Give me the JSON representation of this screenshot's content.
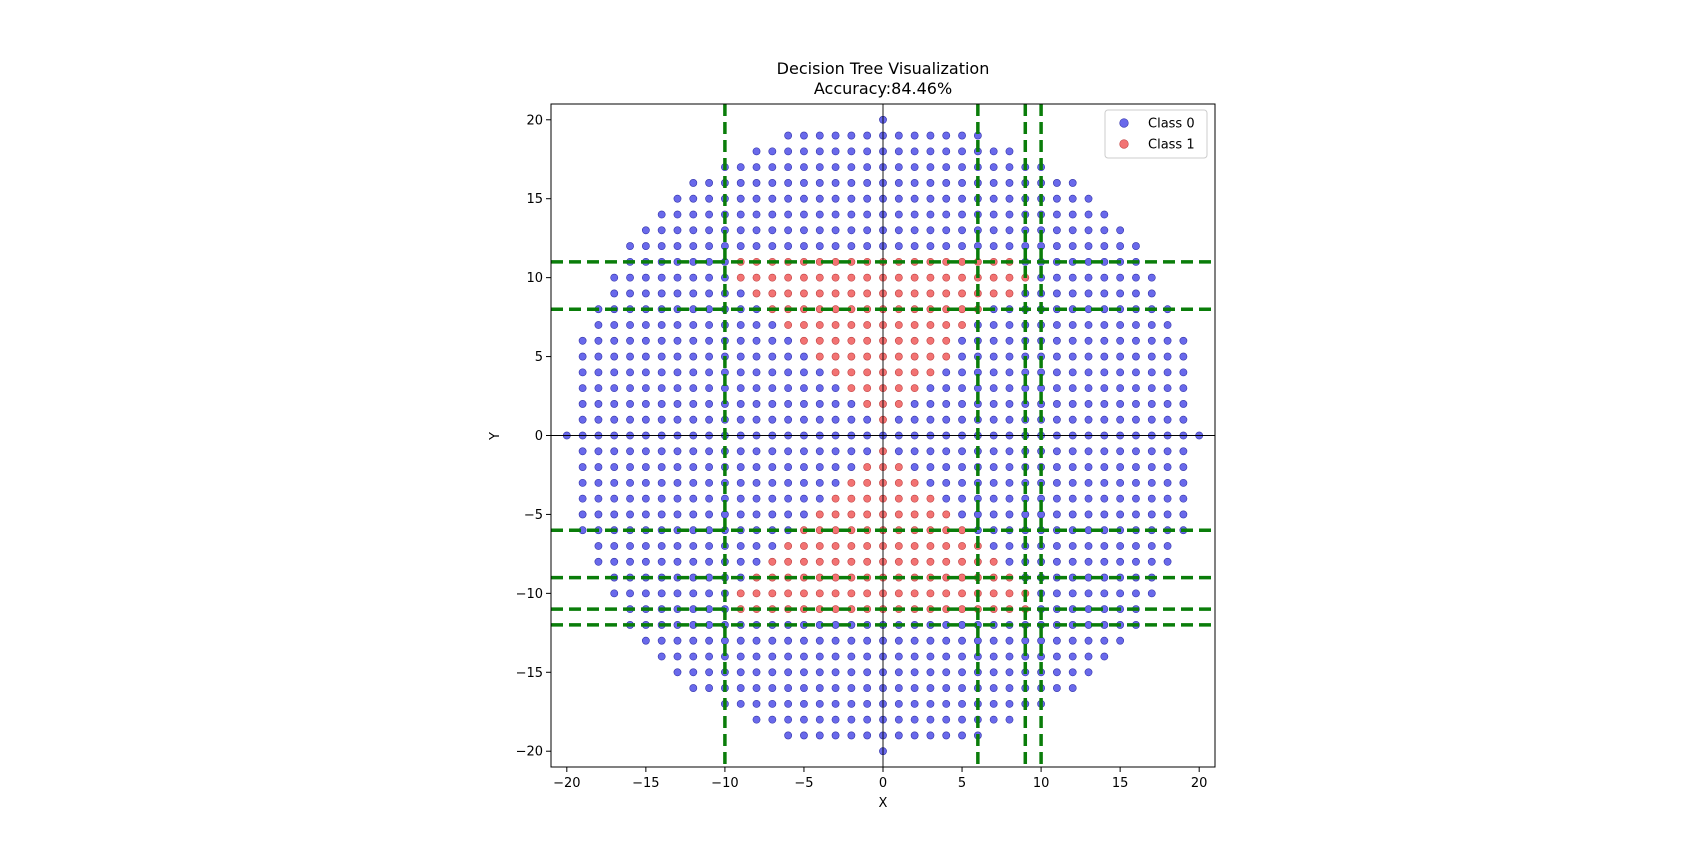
{
  "chart_data": {
    "type": "scatter",
    "title": "Decision Tree Visualization",
    "subtitle": "Accuracy:84.46%",
    "xlabel": "X",
    "ylabel": "Y",
    "xlim": [
      -21,
      21
    ],
    "ylim": [
      -21,
      21
    ],
    "xticks": [
      -20,
      -15,
      -10,
      -5,
      0,
      5,
      10,
      15,
      20
    ],
    "yticks": [
      -20,
      -15,
      -10,
      -5,
      0,
      5,
      10,
      15,
      20
    ],
    "xtick_labels": [
      "−20",
      "−15",
      "−10",
      "−5",
      "0",
      "5",
      "10",
      "15",
      "20"
    ],
    "ytick_labels": [
      "−20",
      "−15",
      "−10",
      "−5",
      "0",
      "5",
      "10",
      "15",
      "20"
    ],
    "grid": false,
    "legend_position": "upper-right",
    "point_grid": {
      "description": "integer lattice points with x^2 + y^2 <= 400",
      "radius": 20,
      "step": 1
    },
    "series": [
      {
        "name": "Class 0",
        "color": "#4f4fe8",
        "edge_color": "#3333aa",
        "rule": "all lattice points not in Class 1"
      },
      {
        "name": "Class 1",
        "color": "#f05a5a",
        "edge_color": "#c04040",
        "rows": [
          {
            "y": 11,
            "x": [
              -9,
              8
            ]
          },
          {
            "y": 10,
            "x": [
              -9,
              9
            ]
          },
          {
            "y": 9,
            "x": [
              -8,
              8
            ]
          },
          {
            "y": 8,
            "x": [
              -7,
              6
            ]
          },
          {
            "y": 7,
            "x": [
              -6,
              5
            ]
          },
          {
            "y": 6,
            "x": [
              -5,
              4
            ]
          },
          {
            "y": 5,
            "x": [
              -4,
              4
            ]
          },
          {
            "y": 4,
            "x": [
              -3,
              3
            ]
          },
          {
            "y": 3,
            "x": [
              -2,
              2
            ]
          },
          {
            "y": 2,
            "x": [
              -1,
              1
            ]
          },
          {
            "y": 1,
            "x": [
              0,
              0
            ]
          },
          {
            "y": -1,
            "x": [
              0,
              0
            ]
          },
          {
            "y": -2,
            "x": [
              -1,
              1
            ]
          },
          {
            "y": -3,
            "x": [
              -2,
              2
            ]
          },
          {
            "y": -4,
            "x": [
              -3,
              3
            ]
          },
          {
            "y": -5,
            "x": [
              -4,
              4
            ]
          },
          {
            "y": -6,
            "x": [
              -5,
              5
            ]
          },
          {
            "y": -7,
            "x": [
              -6,
              6
            ]
          },
          {
            "y": -8,
            "x": [
              -7,
              7
            ]
          },
          {
            "y": -9,
            "x": [
              -8,
              8
            ]
          },
          {
            "y": -10,
            "x": [
              -9,
              9
            ]
          },
          {
            "y": -11,
            "x": [
              -9,
              9
            ]
          }
        ]
      }
    ],
    "reference_lines": {
      "color": "#000000",
      "x": 0,
      "y": 0
    },
    "decision_boundaries": {
      "color": "#0a7d0a",
      "style": "dashed",
      "vertical": [
        -10,
        6,
        9,
        10
      ],
      "horizontal": [
        11,
        8,
        -6,
        -9,
        -11,
        -12
      ]
    }
  }
}
